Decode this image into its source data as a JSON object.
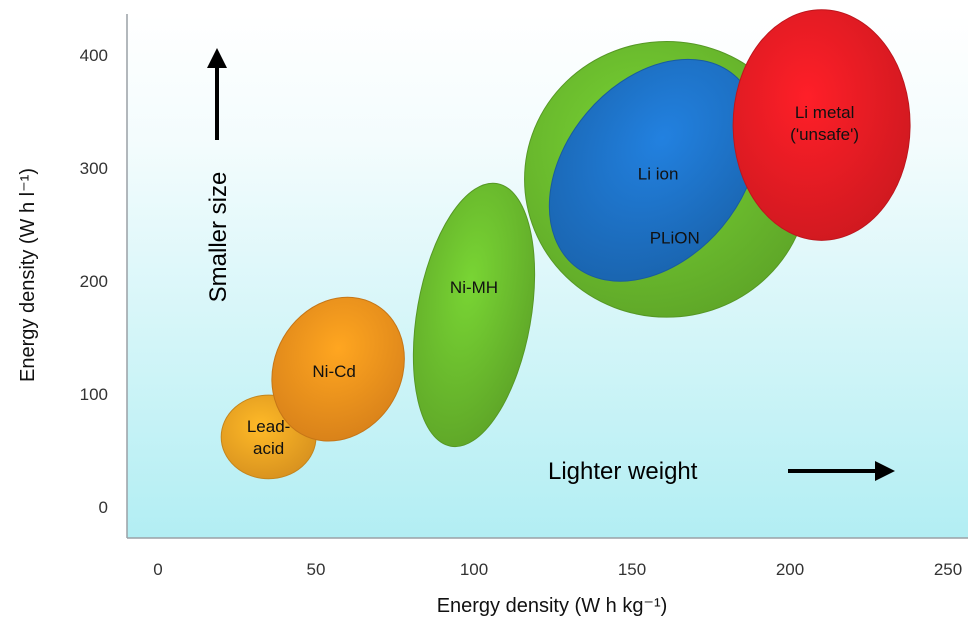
{
  "chart_data": {
    "type": "scatter",
    "xlabel": "Energy density (W h kg⁻¹)",
    "ylabel": "Energy density (W h l⁻¹)",
    "xlim": [
      -10,
      255
    ],
    "ylim": [
      -30,
      430
    ],
    "xticks": [
      0,
      50,
      100,
      150,
      200,
      250
    ],
    "yticks": [
      0,
      100,
      200,
      300,
      400
    ],
    "grid": false,
    "regions": [
      {
        "label": [
          "Lead-",
          "acid"
        ],
        "cx": 35,
        "cy": 62,
        "rx": 15,
        "ry": 37,
        "angle": 0,
        "color": "#f5a623"
      },
      {
        "label": [
          "Ni-Cd"
        ],
        "cx": 57,
        "cy": 122,
        "rx": 20,
        "ry": 66,
        "angle": 30,
        "color": "#f7941d"
      },
      {
        "label": [
          "Ni-MH"
        ],
        "cx": 100,
        "cy": 170,
        "rx": 18,
        "ry": 118,
        "angle": 10,
        "color": "#6cbe2e"
      },
      {
        "label": [
          "PLiON"
        ],
        "cx": 161,
        "cy": 290,
        "rx": 45,
        "ry": 122,
        "angle": 0,
        "color": "#6cbe2e"
      },
      {
        "label": [
          "Li ion"
        ],
        "cx": 157,
        "cy": 298,
        "rx": 28,
        "ry": 110,
        "angle": 40,
        "color": "#1e73c8"
      },
      {
        "label": [
          "Li metal",
          "('unsafe')"
        ],
        "cx": 210,
        "cy": 338,
        "rx": 28,
        "ry": 102,
        "angle": 0,
        "color": "#ec1c24"
      }
    ],
    "annotations": {
      "up": "Smaller size",
      "right": "Lighter weight"
    }
  }
}
